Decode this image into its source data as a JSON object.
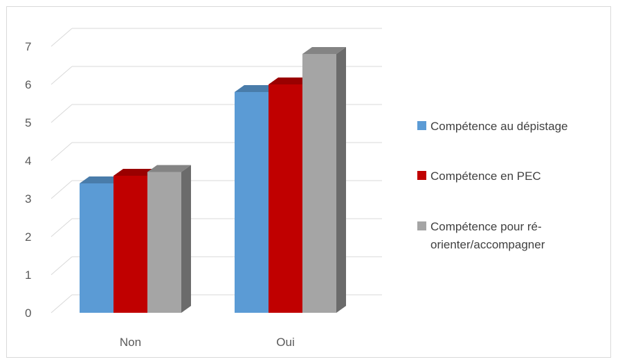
{
  "chart_data": {
    "type": "bar",
    "categories": [
      "Non",
      "Oui"
    ],
    "series": [
      {
        "name": "Compétence au dépistage",
        "values": [
          3.4,
          5.8
        ],
        "color": "#5b9bd5"
      },
      {
        "name": "Compétence en PEC",
        "values": [
          3.6,
          6.0
        ],
        "color": "#c00000"
      },
      {
        "name": "Compétence pour ré-orienter/accompagner",
        "values": [
          3.7,
          6.8
        ],
        "color": "#a5a5a5"
      }
    ],
    "y_ticks": [
      "0",
      "1",
      "2",
      "3",
      "4",
      "5",
      "6",
      "7"
    ],
    "ylim": [
      0,
      7
    ],
    "grid": true,
    "style_3d": true,
    "legend_position": "right",
    "legend_lines": [
      [
        "Compétence au dépistage"
      ],
      [
        "Compétence en PEC"
      ],
      [
        "Compétence pour ré-",
        "orienter/accompagner"
      ]
    ]
  }
}
